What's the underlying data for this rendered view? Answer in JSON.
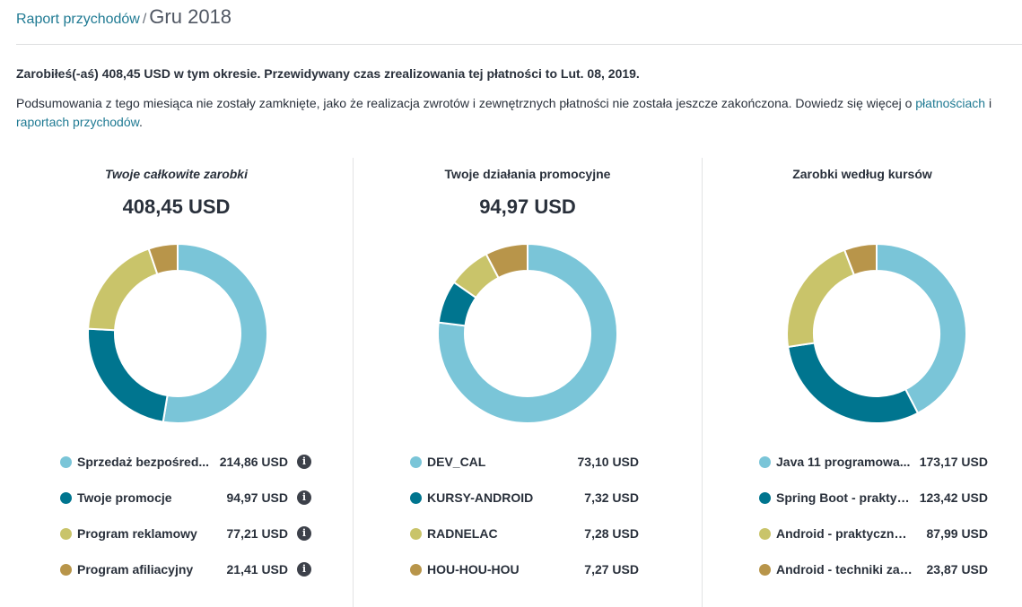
{
  "breadcrumb": {
    "link": "Raport przychodów",
    "separator": "/",
    "current": "Gru 2018"
  },
  "summary": "Zarobiłeś(-aś) 408,45 USD w tym okresie. Przewidywany czas zrealizowania tej płatności to Lut. 08, 2019.",
  "note": {
    "text": "Podsumowania z tego miesiąca nie zostały zamknięte, jako że realizacja zwrotów i zewnętrznych płatności nie została jeszcze zakończona. Dowiedz się więcej o ",
    "link1": "płatnościach",
    "conj": " i ",
    "link2": "raportach przychodów",
    "end": "."
  },
  "colors": {
    "light_blue": "#7ac5d8",
    "teal": "#00758f",
    "olive": "#c9c46a",
    "brown": "#b8954a",
    "link": "#1f7a93"
  },
  "info_icon": "info-icon",
  "panels": [
    {
      "title": "Twoje całkowite zarobki",
      "total": "408,45 USD",
      "items": [
        {
          "label": "Sprzedaż bezpośred...",
          "value": "214,86 USD",
          "amount": 214.86,
          "color": "#7ac5d8",
          "info": true
        },
        {
          "label": "Twoje promocje",
          "value": "94,97 USD",
          "amount": 94.97,
          "color": "#00758f",
          "info": true
        },
        {
          "label": "Program reklamowy",
          "value": "77,21 USD",
          "amount": 77.21,
          "color": "#c9c46a",
          "info": true
        },
        {
          "label": "Program afiliacyjny",
          "value": "21,41 USD",
          "amount": 21.41,
          "color": "#b8954a",
          "info": true
        }
      ]
    },
    {
      "title": "Twoje działania promocyjne",
      "total": "94,97 USD",
      "items": [
        {
          "label": "DEV_CAL",
          "value": "73,10 USD",
          "amount": 73.1,
          "color": "#7ac5d8",
          "info": false
        },
        {
          "label": "KURSY-ANDROID",
          "value": "7,32 USD",
          "amount": 7.32,
          "color": "#00758f",
          "info": false
        },
        {
          "label": "RADNELAC",
          "value": "7,28 USD",
          "amount": 7.28,
          "color": "#c9c46a",
          "info": false
        },
        {
          "label": "HOU-HOU-HOU",
          "value": "7,27 USD",
          "amount": 7.27,
          "color": "#b8954a",
          "info": false
        }
      ]
    },
    {
      "title": "Zarobki według kursów",
      "total": "",
      "items": [
        {
          "label": "Java 11 programowa...",
          "value": "173,17 USD",
          "amount": 173.17,
          "color": "#7ac5d8",
          "info": false
        },
        {
          "label": "Spring Boot - praktyc...",
          "value": "123,42 USD",
          "amount": 123.42,
          "color": "#00758f",
          "info": false
        },
        {
          "label": "Android - praktyczny ...",
          "value": "87,99 USD",
          "amount": 87.99,
          "color": "#c9c46a",
          "info": false
        },
        {
          "label": "Android - techniki zaa...",
          "value": "23,87 USD",
          "amount": 23.87,
          "color": "#b8954a",
          "info": false
        }
      ]
    }
  ]
}
